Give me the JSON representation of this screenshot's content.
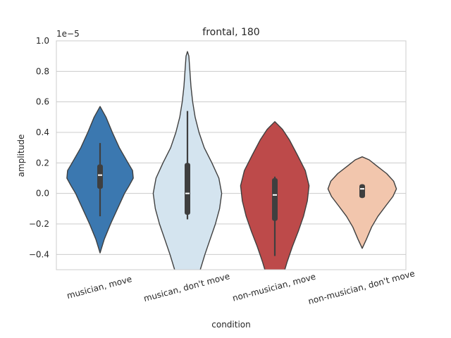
{
  "chart_data": {
    "type": "violin",
    "title": "frontal, 180",
    "xlabel": "condition",
    "ylabel": "amplitude",
    "y_offset_text": "1e−5",
    "ylim": [
      -0.5,
      1.0
    ],
    "y_ticks": [
      -0.4,
      -0.2,
      0.0,
      0.2,
      0.4,
      0.6,
      0.8,
      1.0
    ],
    "y_tick_labels": [
      "−0.4",
      "−0.2",
      "0.0",
      "0.2",
      "0.4",
      "0.6",
      "0.8",
      "1.0"
    ],
    "grid": true,
    "categories": [
      "musician, move",
      "musican, don't move",
      "non-musician, move",
      "non-musician, don't move"
    ],
    "violins": [
      {
        "category": "musician, move",
        "color": "#3b78b0",
        "extent": [
          -0.39,
          0.57
        ],
        "profile": [
          [
            -0.39,
            0
          ],
          [
            -0.3,
            0.12
          ],
          [
            -0.2,
            0.3
          ],
          [
            -0.1,
            0.5
          ],
          [
            0.0,
            0.7
          ],
          [
            0.05,
            0.83
          ],
          [
            0.1,
            0.95
          ],
          [
            0.15,
            0.93
          ],
          [
            0.2,
            0.8
          ],
          [
            0.3,
            0.55
          ],
          [
            0.4,
            0.35
          ],
          [
            0.5,
            0.17
          ],
          [
            0.57,
            0
          ]
        ],
        "quartiles": [
          0.03,
          0.12,
          0.19
        ],
        "whiskers": [
          -0.15,
          0.33
        ]
      },
      {
        "category": "musican, don't move",
        "color": "#d4e4ef",
        "extent": [
          -0.55,
          0.93
        ],
        "profile": [
          [
            -0.55,
            0.3
          ],
          [
            -0.4,
            0.5
          ],
          [
            -0.3,
            0.65
          ],
          [
            -0.2,
            0.8
          ],
          [
            -0.1,
            0.92
          ],
          [
            0.0,
            0.98
          ],
          [
            0.1,
            0.9
          ],
          [
            0.2,
            0.7
          ],
          [
            0.3,
            0.48
          ],
          [
            0.4,
            0.33
          ],
          [
            0.5,
            0.22
          ],
          [
            0.6,
            0.15
          ],
          [
            0.7,
            0.1
          ],
          [
            0.8,
            0.07
          ],
          [
            0.9,
            0.04
          ],
          [
            0.93,
            0
          ]
        ],
        "quartiles": [
          -0.14,
          0.0,
          0.2
        ],
        "whiskers": [
          -0.17,
          0.54
        ]
      },
      {
        "category": "non-musician, move",
        "color": "#bd4a4a",
        "extent": [
          -0.55,
          0.47
        ],
        "profile": [
          [
            -0.55,
            0.22
          ],
          [
            -0.45,
            0.35
          ],
          [
            -0.35,
            0.5
          ],
          [
            -0.25,
            0.67
          ],
          [
            -0.15,
            0.82
          ],
          [
            -0.05,
            0.93
          ],
          [
            0.05,
            0.98
          ],
          [
            0.15,
            0.87
          ],
          [
            0.25,
            0.65
          ],
          [
            0.35,
            0.42
          ],
          [
            0.42,
            0.22
          ],
          [
            0.47,
            0
          ]
        ],
        "quartiles": [
          -0.18,
          -0.01,
          0.1
        ],
        "whiskers": [
          -0.41,
          0.11
        ]
      },
      {
        "category": "non-musician, don't move",
        "color": "#f2c6ad",
        "extent": [
          -0.36,
          0.24
        ],
        "profile": [
          [
            -0.36,
            0
          ],
          [
            -0.3,
            0.12
          ],
          [
            -0.22,
            0.27
          ],
          [
            -0.15,
            0.45
          ],
          [
            -0.08,
            0.68
          ],
          [
            -0.02,
            0.88
          ],
          [
            0.03,
            0.98
          ],
          [
            0.08,
            0.9
          ],
          [
            0.13,
            0.7
          ],
          [
            0.18,
            0.42
          ],
          [
            0.22,
            0.2
          ],
          [
            0.24,
            0
          ]
        ],
        "quartiles": [
          -0.03,
          0.03,
          0.06
        ],
        "whiskers": [
          -0.03,
          0.06
        ]
      }
    ]
  }
}
